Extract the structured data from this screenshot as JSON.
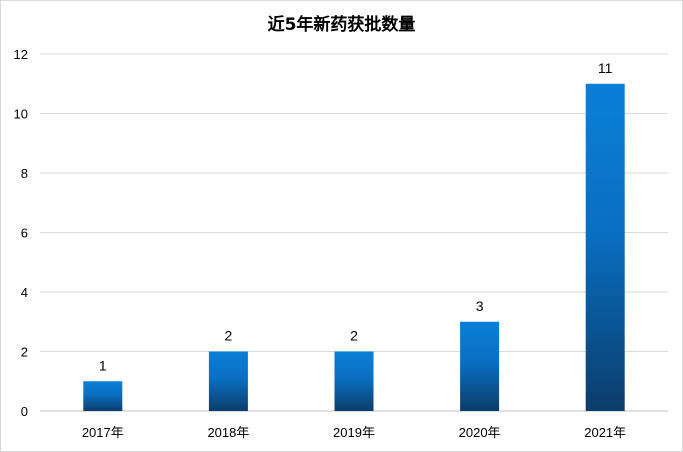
{
  "chart_data": {
    "type": "bar",
    "title": "近5年新药获批数量",
    "xlabel": "",
    "ylabel": "",
    "categories": [
      "2017年",
      "2018年",
      "2019年",
      "2020年",
      "2021年"
    ],
    "values": [
      1,
      2,
      2,
      3,
      11
    ],
    "data_labels": [
      "1",
      "2",
      "2",
      "3",
      "11"
    ],
    "y_ticks": [
      "0",
      "2",
      "4",
      "6",
      "8",
      "10",
      "12"
    ],
    "ylim": [
      0,
      12
    ],
    "grid": true,
    "legend": "none",
    "colors": {
      "bar_top": "#0a7fd8",
      "bar_bottom": "#0b3d6b",
      "grid": "#d9d9d9",
      "axis": "#bfbfbf"
    }
  }
}
